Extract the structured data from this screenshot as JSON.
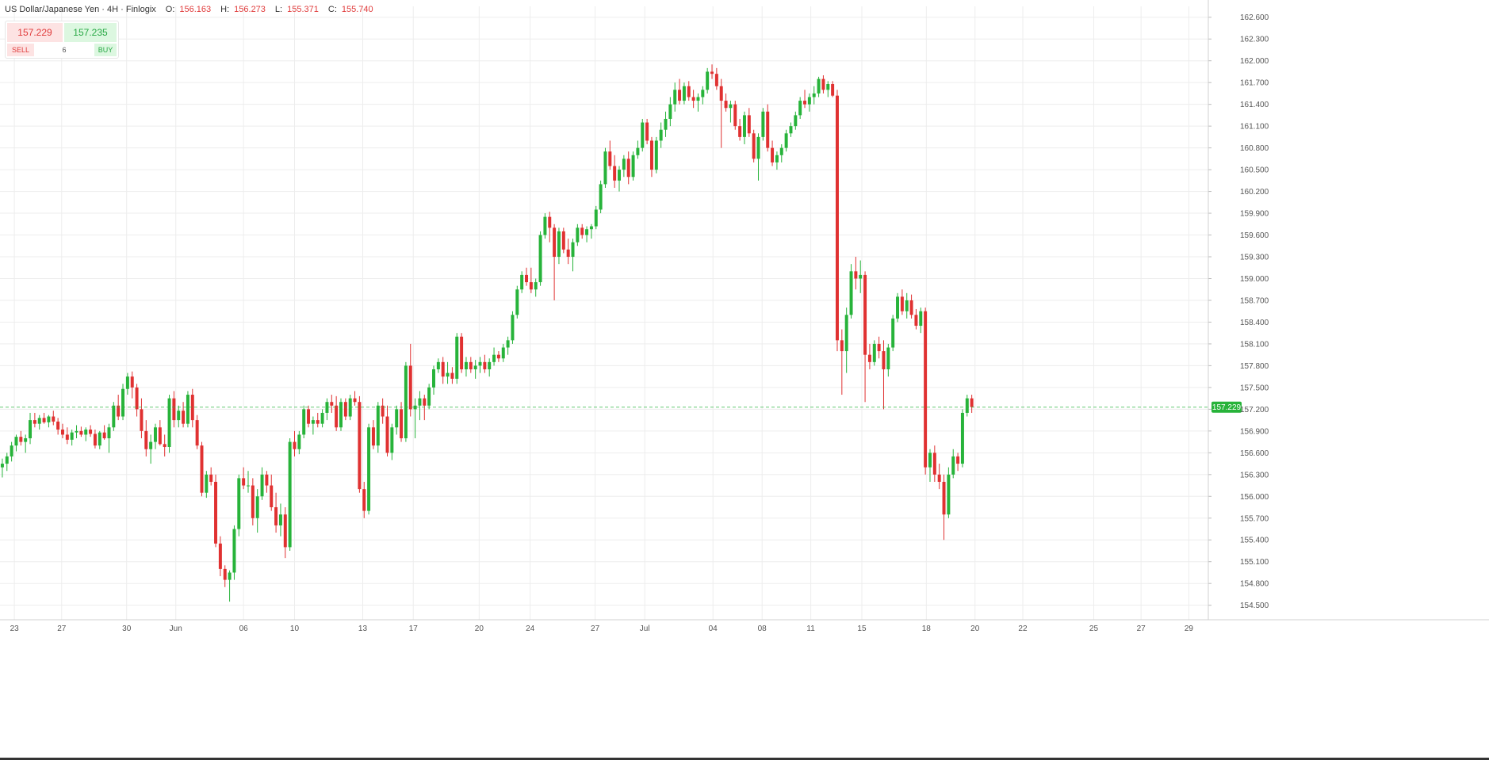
{
  "header": {
    "symbol": "US Dollar/Japanese Yen · 4H · Finlogix",
    "open_label": "O:",
    "open": "156.163",
    "high_label": "H:",
    "high": "156.273",
    "low_label": "L:",
    "low": "155.371",
    "close_label": "C:",
    "close": "155.740"
  },
  "trade_panel": {
    "sell_price": "157.229",
    "buy_price": "157.235",
    "sell_label": "SELL",
    "buy_label": "BUY",
    "quantity": "6"
  },
  "colors": {
    "up": "#27b33a",
    "down": "#e03131",
    "grid": "#ededed",
    "price_line": "#27b33a",
    "axis_text": "#555555"
  },
  "chart_data": {
    "type": "candlestick",
    "interval": "4H",
    "y_axis_side": "right",
    "ylim": [
      154.3,
      162.75
    ],
    "y_ticks": [
      "162.600",
      "162.300",
      "162.000",
      "161.700",
      "161.400",
      "161.100",
      "160.800",
      "160.500",
      "160.200",
      "159.900",
      "159.600",
      "159.300",
      "159.000",
      "158.700",
      "158.400",
      "158.100",
      "157.800",
      "157.500",
      "157.200",
      "156.900",
      "156.600",
      "156.300",
      "156.000",
      "155.700",
      "155.400",
      "155.100",
      "154.800",
      "154.500"
    ],
    "x_ticks": [
      {
        "label": "23",
        "at": 3.1
      },
      {
        "label": "27",
        "at": 13.3
      },
      {
        "label": "30",
        "at": 27.3
      },
      {
        "label": "Jun",
        "at": 37.9
      },
      {
        "label": "06",
        "at": 52.5
      },
      {
        "label": "10",
        "at": 63.5
      },
      {
        "label": "13",
        "at": 78.2
      },
      {
        "label": "17",
        "at": 89.1
      },
      {
        "label": "20",
        "at": 103.3
      },
      {
        "label": "24",
        "at": 114.3
      },
      {
        "label": "27",
        "at": 128.3
      },
      {
        "label": "Jul",
        "at": 139.0
      },
      {
        "label": "04",
        "at": 153.7
      },
      {
        "label": "08",
        "at": 164.3
      },
      {
        "label": "11",
        "at": 174.8
      },
      {
        "label": "15",
        "at": 185.8
      },
      {
        "label": "18",
        "at": 199.7
      },
      {
        "label": "20",
        "at": 210.2
      },
      {
        "label": "22",
        "at": 220.5
      },
      {
        "label": "25",
        "at": 235.8
      },
      {
        "label": "27",
        "at": 246.0
      },
      {
        "label": "29",
        "at": 256.3
      }
    ],
    "x_range": [
      0,
      260.5
    ],
    "last_price": "157.229",
    "last_value": 157.229,
    "ohlc": [
      [
        156.4,
        156.52,
        156.26,
        156.45
      ],
      [
        156.45,
        156.6,
        156.35,
        156.55
      ],
      [
        156.55,
        156.75,
        156.48,
        156.7
      ],
      [
        156.7,
        156.85,
        156.62,
        156.82
      ],
      [
        156.82,
        156.9,
        156.7,
        156.75
      ],
      [
        156.75,
        156.85,
        156.6,
        156.8
      ],
      [
        156.8,
        157.15,
        156.72,
        157.05
      ],
      [
        157.05,
        157.15,
        156.95,
        157.0
      ],
      [
        157.0,
        157.12,
        156.92,
        157.08
      ],
      [
        157.08,
        157.15,
        157.0,
        157.02
      ],
      [
        157.02,
        157.12,
        156.95,
        157.1
      ],
      [
        157.1,
        157.18,
        156.98,
        157.03
      ],
      [
        157.03,
        157.08,
        156.85,
        156.92
      ],
      [
        156.92,
        157.0,
        156.8,
        156.85
      ],
      [
        156.85,
        156.95,
        156.72,
        156.78
      ],
      [
        156.78,
        156.92,
        156.7,
        156.88
      ],
      [
        156.88,
        156.98,
        156.8,
        156.9
      ],
      [
        156.9,
        156.96,
        156.82,
        156.85
      ],
      [
        156.85,
        156.95,
        156.76,
        156.92
      ],
      [
        156.92,
        156.98,
        156.82,
        156.86
      ],
      [
        156.86,
        156.92,
        156.66,
        156.7
      ],
      [
        156.7,
        156.9,
        156.65,
        156.88
      ],
      [
        156.88,
        156.98,
        156.78,
        156.8
      ],
      [
        156.8,
        157.0,
        156.6,
        156.95
      ],
      [
        156.95,
        157.3,
        156.9,
        157.25
      ],
      [
        157.25,
        157.4,
        157.05,
        157.1
      ],
      [
        157.1,
        157.55,
        157.05,
        157.48
      ],
      [
        157.48,
        157.7,
        157.4,
        157.65
      ],
      [
        157.65,
        157.72,
        157.35,
        157.5
      ],
      [
        157.5,
        157.55,
        157.1,
        157.2
      ],
      [
        157.2,
        157.35,
        156.8,
        156.9
      ],
      [
        156.9,
        157.05,
        156.55,
        156.65
      ],
      [
        156.65,
        156.85,
        156.45,
        156.75
      ],
      [
        156.75,
        157.0,
        156.65,
        156.95
      ],
      [
        156.95,
        157.05,
        156.7,
        156.72
      ],
      [
        156.72,
        156.85,
        156.55,
        156.68
      ],
      [
        156.68,
        157.4,
        156.6,
        157.35
      ],
      [
        157.35,
        157.45,
        156.95,
        157.05
      ],
      [
        157.05,
        157.25,
        156.95,
        157.18
      ],
      [
        157.18,
        157.3,
        156.95,
        157.0
      ],
      [
        157.0,
        157.45,
        156.95,
        157.4
      ],
      [
        157.4,
        157.48,
        156.95,
        157.05
      ],
      [
        157.05,
        157.12,
        156.65,
        156.7
      ],
      [
        156.7,
        156.75,
        156.0,
        156.05
      ],
      [
        156.05,
        156.35,
        155.98,
        156.3
      ],
      [
        156.3,
        156.4,
        156.15,
        156.2
      ],
      [
        156.2,
        156.3,
        155.3,
        155.35
      ],
      [
        155.35,
        155.45,
        154.9,
        155.0
      ],
      [
        155.0,
        155.05,
        154.75,
        154.85
      ],
      [
        154.85,
        154.98,
        154.55,
        154.95
      ],
      [
        154.95,
        155.6,
        154.85,
        155.55
      ],
      [
        155.55,
        156.3,
        155.45,
        156.25
      ],
      [
        156.25,
        156.4,
        156.1,
        156.15
      ],
      [
        156.15,
        156.35,
        156.05,
        156.15
      ],
      [
        156.15,
        156.25,
        155.6,
        155.7
      ],
      [
        155.7,
        156.1,
        155.5,
        156.0
      ],
      [
        156.0,
        156.4,
        155.95,
        156.3
      ],
      [
        156.3,
        156.35,
        156.05,
        156.15
      ],
      [
        156.15,
        156.3,
        155.8,
        155.85
      ],
      [
        155.85,
        156.05,
        155.5,
        155.6
      ],
      [
        155.6,
        155.9,
        155.45,
        155.75
      ],
      [
        155.75,
        155.85,
        155.15,
        155.3
      ],
      [
        155.3,
        156.8,
        155.25,
        156.75
      ],
      [
        156.75,
        156.9,
        156.55,
        156.65
      ],
      [
        156.65,
        156.9,
        156.58,
        156.85
      ],
      [
        156.85,
        157.25,
        156.8,
        157.2
      ],
      [
        157.2,
        157.25,
        156.95,
        157.0
      ],
      [
        157.0,
        157.1,
        156.85,
        157.05
      ],
      [
        157.05,
        157.15,
        156.95,
        157.0
      ],
      [
        157.0,
        157.2,
        156.95,
        157.15
      ],
      [
        157.15,
        157.35,
        157.05,
        157.3
      ],
      [
        157.3,
        157.4,
        157.15,
        157.25
      ],
      [
        157.25,
        157.38,
        156.9,
        156.95
      ],
      [
        156.95,
        157.35,
        156.9,
        157.3
      ],
      [
        157.3,
        157.35,
        157.05,
        157.1
      ],
      [
        157.1,
        157.4,
        157.05,
        157.35
      ],
      [
        157.35,
        157.45,
        157.25,
        157.3
      ],
      [
        157.3,
        157.38,
        156.05,
        156.1
      ],
      [
        156.1,
        156.2,
        155.7,
        155.8
      ],
      [
        155.8,
        157.0,
        155.75,
        156.95
      ],
      [
        156.95,
        157.05,
        156.65,
        156.7
      ],
      [
        156.7,
        157.3,
        156.6,
        157.25
      ],
      [
        157.25,
        157.35,
        157.0,
        157.1
      ],
      [
        157.1,
        157.25,
        156.55,
        156.6
      ],
      [
        156.6,
        157.0,
        156.5,
        156.95
      ],
      [
        156.95,
        157.25,
        156.85,
        157.2
      ],
      [
        157.2,
        157.3,
        156.75,
        156.8
      ],
      [
        156.8,
        157.85,
        156.75,
        157.8
      ],
      [
        157.8,
        158.1,
        157.1,
        157.2
      ],
      [
        157.2,
        157.35,
        156.8,
        157.25
      ],
      [
        157.25,
        157.45,
        157.05,
        157.35
      ],
      [
        157.35,
        157.4,
        157.05,
        157.25
      ],
      [
        157.25,
        157.55,
        157.2,
        157.5
      ],
      [
        157.5,
        157.8,
        157.4,
        157.75
      ],
      [
        157.75,
        157.9,
        157.7,
        157.85
      ],
      [
        157.85,
        157.92,
        157.55,
        157.65
      ],
      [
        157.65,
        157.85,
        157.55,
        157.7
      ],
      [
        157.7,
        157.78,
        157.55,
        157.62
      ],
      [
        157.62,
        158.25,
        157.55,
        158.2
      ],
      [
        158.2,
        158.25,
        157.7,
        157.75
      ],
      [
        157.75,
        157.92,
        157.65,
        157.85
      ],
      [
        157.85,
        157.92,
        157.7,
        157.75
      ],
      [
        157.75,
        157.88,
        157.62,
        157.8
      ],
      [
        157.8,
        157.92,
        157.7,
        157.85
      ],
      [
        157.85,
        157.95,
        157.7,
        157.75
      ],
      [
        157.75,
        157.9,
        157.65,
        157.85
      ],
      [
        157.85,
        158.05,
        157.8,
        157.95
      ],
      [
        157.95,
        158.0,
        157.85,
        157.9
      ],
      [
        157.9,
        158.1,
        157.85,
        158.05
      ],
      [
        158.05,
        158.2,
        157.95,
        158.15
      ],
      [
        158.15,
        158.55,
        158.1,
        158.5
      ],
      [
        158.5,
        158.9,
        158.45,
        158.85
      ],
      [
        158.85,
        159.1,
        158.8,
        159.05
      ],
      [
        159.05,
        159.15,
        158.9,
        158.95
      ],
      [
        158.95,
        159.15,
        158.8,
        158.85
      ],
      [
        158.85,
        159.0,
        158.75,
        158.95
      ],
      [
        158.95,
        159.65,
        158.9,
        159.6
      ],
      [
        159.6,
        159.9,
        159.55,
        159.85
      ],
      [
        159.85,
        159.92,
        159.5,
        159.7
      ],
      [
        159.7,
        159.75,
        158.7,
        159.3
      ],
      [
        159.3,
        159.7,
        159.2,
        159.65
      ],
      [
        159.65,
        159.7,
        159.35,
        159.4
      ],
      [
        159.4,
        159.55,
        159.2,
        159.3
      ],
      [
        159.3,
        159.55,
        159.1,
        159.5
      ],
      [
        159.5,
        159.75,
        159.45,
        159.7
      ],
      [
        159.7,
        159.75,
        159.55,
        159.6
      ],
      [
        159.6,
        159.72,
        159.5,
        159.68
      ],
      [
        159.68,
        159.75,
        159.55,
        159.72
      ],
      [
        159.72,
        160.0,
        159.68,
        159.95
      ],
      [
        159.95,
        160.35,
        159.9,
        160.3
      ],
      [
        160.3,
        160.8,
        160.25,
        160.75
      ],
      [
        160.75,
        160.9,
        160.5,
        160.55
      ],
      [
        160.55,
        160.7,
        160.25,
        160.35
      ],
      [
        160.35,
        160.55,
        160.2,
        160.5
      ],
      [
        160.5,
        160.7,
        160.4,
        160.65
      ],
      [
        160.65,
        160.75,
        160.3,
        160.4
      ],
      [
        160.4,
        160.75,
        160.35,
        160.7
      ],
      [
        160.7,
        160.9,
        160.65,
        160.8
      ],
      [
        160.8,
        161.2,
        160.75,
        161.15
      ],
      [
        161.15,
        161.2,
        160.85,
        160.9
      ],
      [
        160.9,
        160.95,
        160.4,
        160.5
      ],
      [
        160.5,
        160.95,
        160.45,
        160.9
      ],
      [
        160.9,
        161.15,
        160.8,
        161.05
      ],
      [
        161.05,
        161.3,
        160.95,
        161.2
      ],
      [
        161.2,
        161.5,
        161.1,
        161.4
      ],
      [
        161.4,
        161.7,
        161.3,
        161.6
      ],
      [
        161.6,
        161.75,
        161.4,
        161.45
      ],
      [
        161.45,
        161.7,
        161.4,
        161.65
      ],
      [
        161.65,
        161.72,
        161.45,
        161.5
      ],
      [
        161.5,
        161.6,
        161.35,
        161.45
      ],
      [
        161.45,
        161.55,
        161.3,
        161.5
      ],
      [
        161.5,
        161.65,
        161.4,
        161.6
      ],
      [
        161.6,
        161.9,
        161.55,
        161.85
      ],
      [
        161.85,
        161.95,
        161.75,
        161.82
      ],
      [
        161.82,
        161.9,
        161.6,
        161.65
      ],
      [
        161.65,
        161.75,
        160.8,
        161.45
      ],
      [
        161.45,
        161.55,
        161.3,
        161.35
      ],
      [
        161.35,
        161.45,
        161.15,
        161.4
      ],
      [
        161.4,
        161.45,
        161.05,
        161.1
      ],
      [
        161.1,
        161.2,
        160.9,
        160.95
      ],
      [
        160.95,
        161.3,
        160.85,
        161.25
      ],
      [
        161.25,
        161.35,
        160.95,
        161.0
      ],
      [
        161.0,
        161.05,
        160.6,
        160.65
      ],
      [
        160.65,
        161.0,
        160.35,
        160.95
      ],
      [
        160.95,
        161.35,
        160.9,
        161.3
      ],
      [
        161.3,
        161.4,
        160.75,
        160.8
      ],
      [
        160.8,
        160.9,
        160.55,
        160.6
      ],
      [
        160.6,
        160.75,
        160.5,
        160.7
      ],
      [
        160.7,
        160.85,
        160.6,
        160.8
      ],
      [
        160.8,
        161.05,
        160.75,
        161.0
      ],
      [
        161.0,
        161.15,
        160.95,
        161.1
      ],
      [
        161.1,
        161.3,
        161.05,
        161.25
      ],
      [
        161.25,
        161.5,
        161.2,
        161.45
      ],
      [
        161.45,
        161.6,
        161.35,
        161.4
      ],
      [
        161.4,
        161.55,
        161.3,
        161.5
      ],
      [
        161.5,
        161.65,
        161.4,
        161.55
      ],
      [
        161.55,
        161.78,
        161.5,
        161.75
      ],
      [
        161.75,
        161.8,
        161.55,
        161.6
      ],
      [
        161.6,
        161.72,
        161.5,
        161.68
      ],
      [
        161.68,
        161.72,
        161.5,
        161.52
      ],
      [
        161.52,
        161.6,
        158.0,
        158.15
      ],
      [
        158.15,
        158.3,
        157.4,
        158.0
      ],
      [
        158.0,
        158.6,
        157.7,
        158.5
      ],
      [
        158.5,
        159.2,
        158.45,
        159.1
      ],
      [
        159.1,
        159.3,
        158.85,
        159.0
      ],
      [
        159.0,
        159.25,
        158.8,
        159.05
      ],
      [
        159.05,
        159.1,
        157.3,
        157.95
      ],
      [
        157.95,
        158.1,
        157.75,
        157.85
      ],
      [
        157.85,
        158.15,
        157.8,
        158.1
      ],
      [
        158.1,
        158.2,
        157.9,
        158.0
      ],
      [
        158.0,
        158.15,
        157.2,
        157.75
      ],
      [
        157.75,
        158.1,
        157.65,
        158.05
      ],
      [
        158.05,
        158.5,
        158.0,
        158.45
      ],
      [
        158.45,
        158.8,
        158.4,
        158.75
      ],
      [
        158.75,
        158.85,
        158.5,
        158.55
      ],
      [
        158.55,
        158.8,
        158.45,
        158.7
      ],
      [
        158.7,
        158.78,
        158.45,
        158.5
      ],
      [
        158.5,
        158.58,
        158.3,
        158.35
      ],
      [
        158.35,
        158.6,
        158.25,
        158.55
      ],
      [
        158.55,
        158.6,
        156.3,
        156.4
      ],
      [
        156.4,
        156.65,
        156.2,
        156.6
      ],
      [
        156.6,
        156.7,
        156.2,
        156.3
      ],
      [
        156.3,
        156.45,
        156.1,
        156.2
      ],
      [
        156.2,
        156.3,
        155.4,
        155.75
      ],
      [
        155.75,
        156.4,
        155.7,
        156.3
      ],
      [
        156.3,
        156.65,
        156.25,
        156.55
      ],
      [
        156.55,
        156.6,
        156.35,
        156.45
      ],
      [
        156.45,
        157.2,
        156.4,
        157.15
      ],
      [
        157.15,
        157.4,
        157.1,
        157.35
      ],
      [
        157.35,
        157.4,
        157.15,
        157.23
      ]
    ]
  }
}
